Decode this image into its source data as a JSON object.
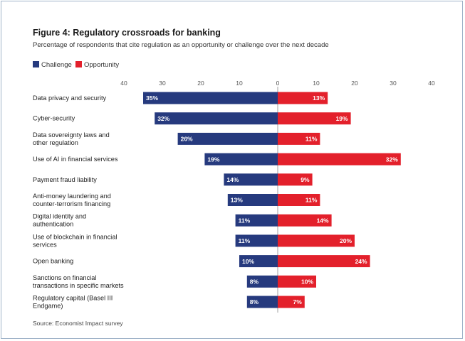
{
  "chart_data": {
    "type": "bar",
    "title": "Figure 4: Regulatory crossroads for banking",
    "subtitle": "Percentage of respondents that cite regulation as an opportunity or challenge over the next decade",
    "source": "Source: Economist Impact survey",
    "legend_position": "top-left",
    "orientation": "horizontal-diverging",
    "xlim": [
      -40,
      40
    ],
    "ticks": [
      "40",
      "30",
      "20",
      "10",
      "0",
      "10",
      "20",
      "30",
      "40"
    ],
    "grid": false,
    "categories": [
      [
        "Data privacy and security"
      ],
      [
        "Cyber-security"
      ],
      [
        "Data sovereignty laws and",
        "other regulation"
      ],
      [
        "Use of AI in financial services"
      ],
      [
        "Payment fraud liability"
      ],
      [
        "Anti-money laundering and",
        "counter-terrorism financing"
      ],
      [
        "Digital identity and",
        "authentication"
      ],
      [
        "Use of blockchain in financial",
        "services"
      ],
      [
        "Open banking"
      ],
      [
        "Sanctions on financial",
        "transactions in specific markets"
      ],
      [
        "Regulatory capital (Basel III",
        "Endgame)"
      ]
    ],
    "series": [
      {
        "name": "Challenge",
        "color": "#263a7e",
        "values": [
          35,
          32,
          26,
          19,
          14,
          13,
          11,
          11,
          10,
          8,
          8
        ],
        "labels": [
          "35%",
          "32%",
          "26%",
          "19%",
          "14%",
          "13%",
          "11%",
          "11%",
          "10%",
          "8%",
          "8%"
        ]
      },
      {
        "name": "Opportunity",
        "color": "#e3202b",
        "values": [
          13,
          19,
          11,
          32,
          9,
          11,
          14,
          20,
          24,
          10,
          7
        ],
        "labels": [
          "13%",
          "19%",
          "11%",
          "32%",
          "9%",
          "11%",
          "14%",
          "20%",
          "24%",
          "10%",
          "7%"
        ]
      }
    ]
  }
}
